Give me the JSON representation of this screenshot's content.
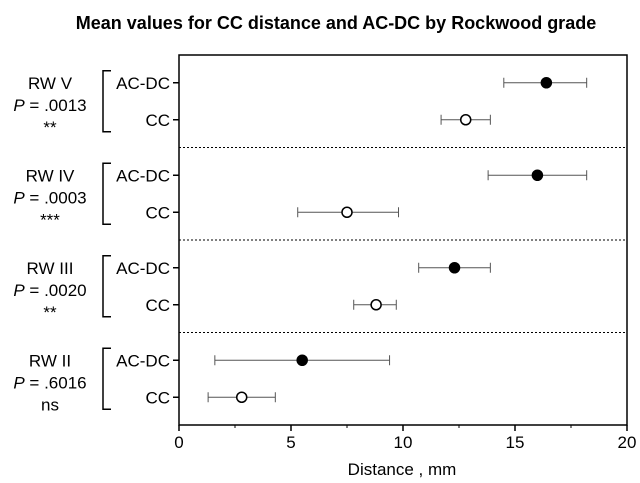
{
  "chart_data": {
    "type": "scatter",
    "title": "Mean values for CC distance and AC-DC by Rockwood grade",
    "xlabel": "Distance , mm",
    "xlim": [
      0,
      20
    ],
    "xticks": [
      0,
      5,
      10,
      15,
      20
    ],
    "markers": {
      "AC-DC": "filled-circle",
      "CC": "open-circle"
    },
    "groups": [
      {
        "grade": "RW V",
        "p_prefix": "P",
        "p_value": " = .0013",
        "significance": "**",
        "points": [
          {
            "measure": "AC-DC",
            "mean": 16.4,
            "low": 14.5,
            "high": 18.2
          },
          {
            "measure": "CC",
            "mean": 12.8,
            "low": 11.7,
            "high": 13.9
          }
        ]
      },
      {
        "grade": "RW IV",
        "p_prefix": "P",
        "p_value": " = .0003",
        "significance": "***",
        "points": [
          {
            "measure": "AC-DC",
            "mean": 16.0,
            "low": 13.8,
            "high": 18.2
          },
          {
            "measure": "CC",
            "mean": 7.5,
            "low": 5.3,
            "high": 9.8
          }
        ]
      },
      {
        "grade": "RW III",
        "p_prefix": "P",
        "p_value": " = .0020",
        "significance": "**",
        "points": [
          {
            "measure": "AC-DC",
            "mean": 12.3,
            "low": 10.7,
            "high": 13.9
          }
        ]
      },
      {
        "grade": "RW III",
        "p_prefix": "",
        "p_value": "",
        "significance": "",
        "points": [
          {
            "measure": "CC",
            "mean": 8.8,
            "low": 7.8,
            "high": 9.7
          }
        ]
      },
      {
        "grade": "RW II",
        "p_prefix": "P",
        "p_value": " = .6016",
        "significance": "ns",
        "points": [
          {
            "measure": "AC-DC",
            "mean": 5.5,
            "low": 1.6,
            "high": 9.4
          },
          {
            "measure": "CC",
            "mean": 2.8,
            "low": 1.3,
            "high": 4.3
          }
        ]
      }
    ]
  }
}
